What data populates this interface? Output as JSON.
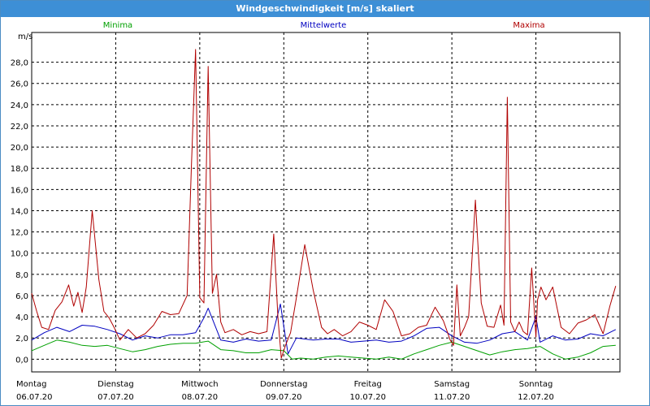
{
  "window": {
    "title": "Windgeschwindigkeit [m/s] skaliert"
  },
  "chart_data": {
    "type": "line",
    "unit_label": "m/s",
    "ylim": [
      -1.2,
      30.8
    ],
    "y_ticks": [
      "0,0",
      "2,0",
      "4,0",
      "6,0",
      "8,0",
      "10,0",
      "12,0",
      "14,0",
      "16,0",
      "18,0",
      "20,0",
      "22,0",
      "24,0",
      "26,0",
      "28,0"
    ],
    "x_ticks": [
      {
        "day": "Montag",
        "date": "06.07.20"
      },
      {
        "day": "Dienstag",
        "date": "07.07.20"
      },
      {
        "day": "Mittwoch",
        "date": "08.07.20"
      },
      {
        "day": "Donnerstag",
        "date": "09.07.20"
      },
      {
        "day": "Freitag",
        "date": "10.07.20"
      },
      {
        "day": "Samstag",
        "date": "11.07.20"
      },
      {
        "day": "Sonntag",
        "date": "12.07.20"
      }
    ],
    "xlim": [
      0,
      7
    ],
    "grid": true,
    "legend_position": "top",
    "series": [
      {
        "name": "Minima",
        "color": "#00a000",
        "x": [
          0,
          0.15,
          0.3,
          0.45,
          0.6,
          0.75,
          0.9,
          1.05,
          1.2,
          1.35,
          1.5,
          1.65,
          1.8,
          1.95,
          2.1,
          2.25,
          2.4,
          2.55,
          2.7,
          2.85,
          3.0,
          3.1,
          3.2,
          3.35,
          3.5,
          3.65,
          3.8,
          3.95,
          4.1,
          4.25,
          4.4,
          4.55,
          4.7,
          4.85,
          5.0,
          5.15,
          5.3,
          5.45,
          5.6,
          5.75,
          5.9,
          6.05,
          6.2,
          6.35,
          6.5,
          6.65,
          6.8,
          6.95
        ],
        "y": [
          0.8,
          1.3,
          1.8,
          1.6,
          1.3,
          1.2,
          1.3,
          1.0,
          0.7,
          0.9,
          1.2,
          1.4,
          1.5,
          1.5,
          1.7,
          0.9,
          0.8,
          0.6,
          0.6,
          0.9,
          0.8,
          0.0,
          0.1,
          0.0,
          0.2,
          0.3,
          0.2,
          0.1,
          0.0,
          0.2,
          0.0,
          0.5,
          0.9,
          1.3,
          1.6,
          1.2,
          0.8,
          0.4,
          0.7,
          0.9,
          1.0,
          1.2,
          0.5,
          0.0,
          0.2,
          0.6,
          1.2,
          1.3
        ]
      },
      {
        "name": "Mittelwerte",
        "color": "#0000c0",
        "x": [
          0,
          0.15,
          0.3,
          0.45,
          0.6,
          0.75,
          0.9,
          1.05,
          1.2,
          1.35,
          1.5,
          1.65,
          1.8,
          1.95,
          2.05,
          2.1,
          2.25,
          2.4,
          2.55,
          2.7,
          2.85,
          2.96,
          3.05,
          3.15,
          3.35,
          3.5,
          3.65,
          3.8,
          3.95,
          4.1,
          4.25,
          4.4,
          4.55,
          4.7,
          4.85,
          5.0,
          5.15,
          5.3,
          5.45,
          5.6,
          5.75,
          5.9,
          6.0,
          6.05,
          6.2,
          6.35,
          6.5,
          6.65,
          6.8,
          6.95
        ],
        "y": [
          1.8,
          2.5,
          3.0,
          2.6,
          3.2,
          3.1,
          2.8,
          2.4,
          1.8,
          2.2,
          2.0,
          2.3,
          2.3,
          2.5,
          3.9,
          4.8,
          1.8,
          1.6,
          1.9,
          1.7,
          1.8,
          5.2,
          0.5,
          2.0,
          1.8,
          1.9,
          1.9,
          1.6,
          1.7,
          1.8,
          1.6,
          1.7,
          2.2,
          2.9,
          3.0,
          2.2,
          1.6,
          1.5,
          1.8,
          2.4,
          2.6,
          1.8,
          4.0,
          1.6,
          2.2,
          1.8,
          1.9,
          2.4,
          2.2,
          2.8
        ]
      },
      {
        "name": "Maxima",
        "color": "#b00000",
        "x": [
          0,
          0.06,
          0.12,
          0.2,
          0.28,
          0.36,
          0.44,
          0.5,
          0.55,
          0.6,
          0.65,
          0.72,
          0.8,
          0.86,
          0.92,
          0.98,
          1.05,
          1.15,
          1.25,
          1.35,
          1.45,
          1.55,
          1.65,
          1.75,
          1.85,
          1.9,
          1.95,
          2.0,
          2.05,
          2.1,
          2.15,
          2.2,
          2.25,
          2.3,
          2.4,
          2.5,
          2.6,
          2.7,
          2.8,
          2.88,
          2.93,
          2.97,
          3.02,
          3.08,
          3.15,
          3.25,
          3.35,
          3.45,
          3.52,
          3.6,
          3.7,
          3.8,
          3.9,
          4.0,
          4.1,
          4.2,
          4.3,
          4.4,
          4.5,
          4.6,
          4.7,
          4.8,
          4.9,
          4.98,
          5.02,
          5.06,
          5.1,
          5.15,
          5.2,
          5.28,
          5.35,
          5.42,
          5.5,
          5.58,
          5.62,
          5.66,
          5.7,
          5.75,
          5.8,
          5.85,
          5.9,
          5.95,
          6.0,
          6.02,
          6.06,
          6.12,
          6.2,
          6.3,
          6.4,
          6.5,
          6.6,
          6.7,
          6.8,
          6.88,
          6.95
        ],
        "y": [
          6.2,
          4.5,
          3.0,
          2.8,
          4.6,
          5.4,
          7.0,
          5.0,
          6.3,
          4.4,
          6.8,
          14.0,
          7.5,
          4.5,
          3.9,
          3.0,
          1.8,
          2.8,
          2.0,
          2.4,
          3.2,
          4.5,
          4.2,
          4.3,
          6.0,
          18.0,
          29.2,
          5.8,
          5.3,
          27.6,
          6.2,
          8.0,
          3.5,
          2.5,
          2.8,
          2.3,
          2.6,
          2.4,
          2.6,
          11.8,
          4.0,
          0.1,
          1.3,
          2.5,
          5.8,
          10.8,
          6.5,
          3.0,
          2.4,
          2.8,
          2.2,
          2.6,
          3.5,
          3.2,
          2.8,
          5.6,
          4.5,
          2.2,
          2.4,
          3.0,
          3.2,
          4.9,
          3.6,
          1.8,
          1.3,
          7.0,
          2.2,
          3.0,
          4.0,
          15.0,
          5.3,
          3.1,
          3.0,
          5.1,
          3.2,
          24.7,
          3.5,
          2.6,
          3.5,
          2.6,
          2.3,
          8.6,
          2.1,
          5.6,
          6.8,
          5.6,
          6.8,
          3.0,
          2.4,
          3.4,
          3.7,
          4.2,
          2.4,
          5.0,
          6.9
        ]
      }
    ]
  }
}
